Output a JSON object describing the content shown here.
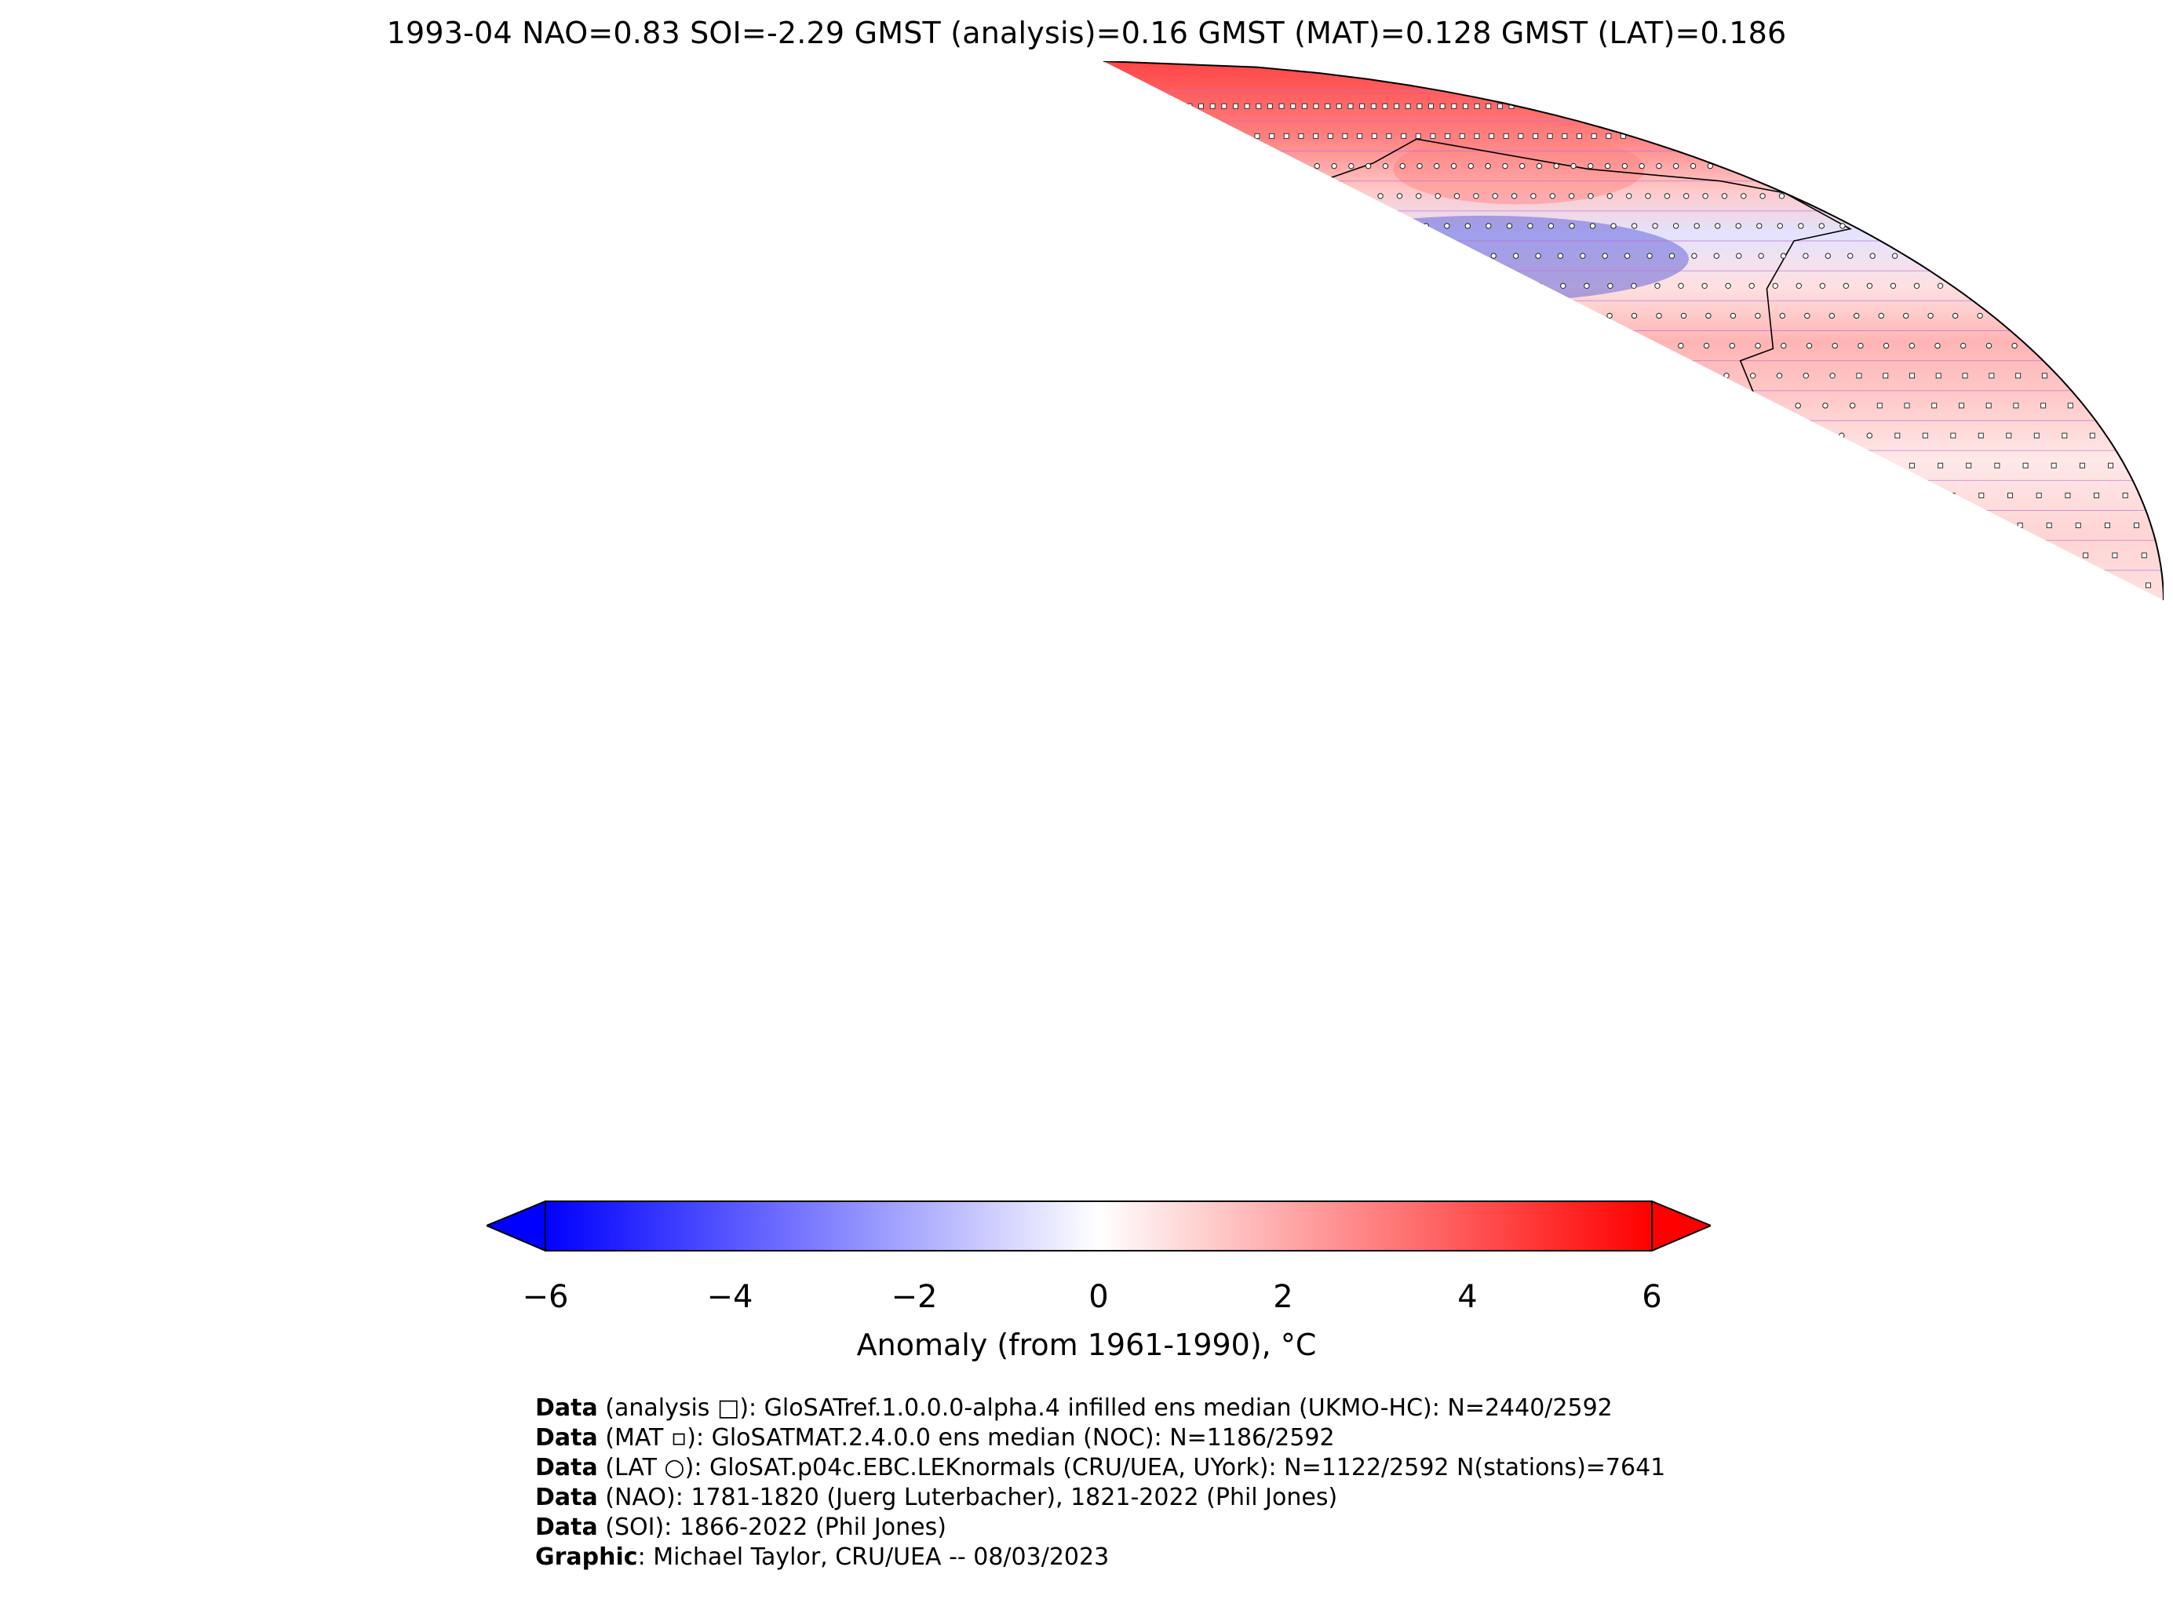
{
  "title": "1993-04 NAO=0.83 SOI=-2.29 GMST (analysis)=0.16 GMST (MAT)=0.128 GMST (LAT)=0.186",
  "colorbar": {
    "label": "Anomaly (from 1961-1990), °C",
    "min": -6,
    "max": 6,
    "ticks": [
      "−6",
      "−4",
      "−2",
      "0",
      "2",
      "4",
      "6"
    ],
    "colors": {
      "neg": "#0000ff",
      "zero": "#ffffff",
      "pos": "#ff0000"
    }
  },
  "map": {
    "projection": "Robinson",
    "missing_color": "#00ffff",
    "sea_ice_color": "#777777",
    "grid_color": "#c070d0"
  },
  "credits": [
    {
      "bold": "Data",
      "text": " (analysis □): GloSATref.1.0.0.0-alpha.4 infilled ens median (UKMO-HC): N=2440/2592"
    },
    {
      "bold": "Data",
      "text": " (MAT ▫): GloSATMAT.2.4.0.0 ens median (NOC): N=1186/2592"
    },
    {
      "bold": "Data",
      "text": " (LAT ○): GloSAT.p04c.EBC.LEKnormals (CRU/UEA, UYork): N=1122/2592 N(stations)=7641"
    },
    {
      "bold": "Data",
      "text": " (NAO): 1781-1820 (Juerg Luterbacher), 1821-2022 (Phil Jones)"
    },
    {
      "bold": "Data",
      "text": " (SOI): 1866-2022 (Phil Jones)"
    },
    {
      "bold": "Graphic",
      "text": ": Michael Taylor, CRU/UEA -- 08/03/2023"
    }
  ]
}
